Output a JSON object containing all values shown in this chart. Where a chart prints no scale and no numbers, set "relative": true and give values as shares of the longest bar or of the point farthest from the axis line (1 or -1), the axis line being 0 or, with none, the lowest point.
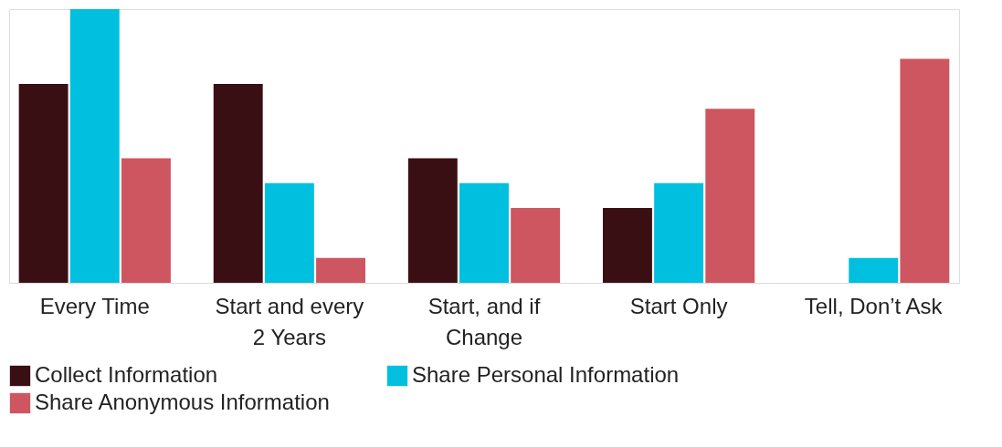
{
  "chart_data": {
    "type": "bar",
    "relative": true,
    "categories": [
      "Every Time",
      "Start and every 2 Years",
      "Start, and if Change",
      "Start Only",
      "Tell, Don’t Ask"
    ],
    "series": [
      {
        "name": "Collect Information",
        "color": "#3a0f14",
        "values": [
          0.727,
          0.727,
          0.455,
          0.273,
          0
        ]
      },
      {
        "name": "Share Personal Information",
        "color": "#00bfdf",
        "values": [
          1,
          0.364,
          0.364,
          0.364,
          0.091
        ]
      },
      {
        "name": "Share Anonymous Information",
        "color": "#cd5660",
        "values": [
          0.455,
          0.091,
          0.273,
          0.636,
          0.818
        ]
      }
    ],
    "legend": "bottom",
    "grid": false
  }
}
